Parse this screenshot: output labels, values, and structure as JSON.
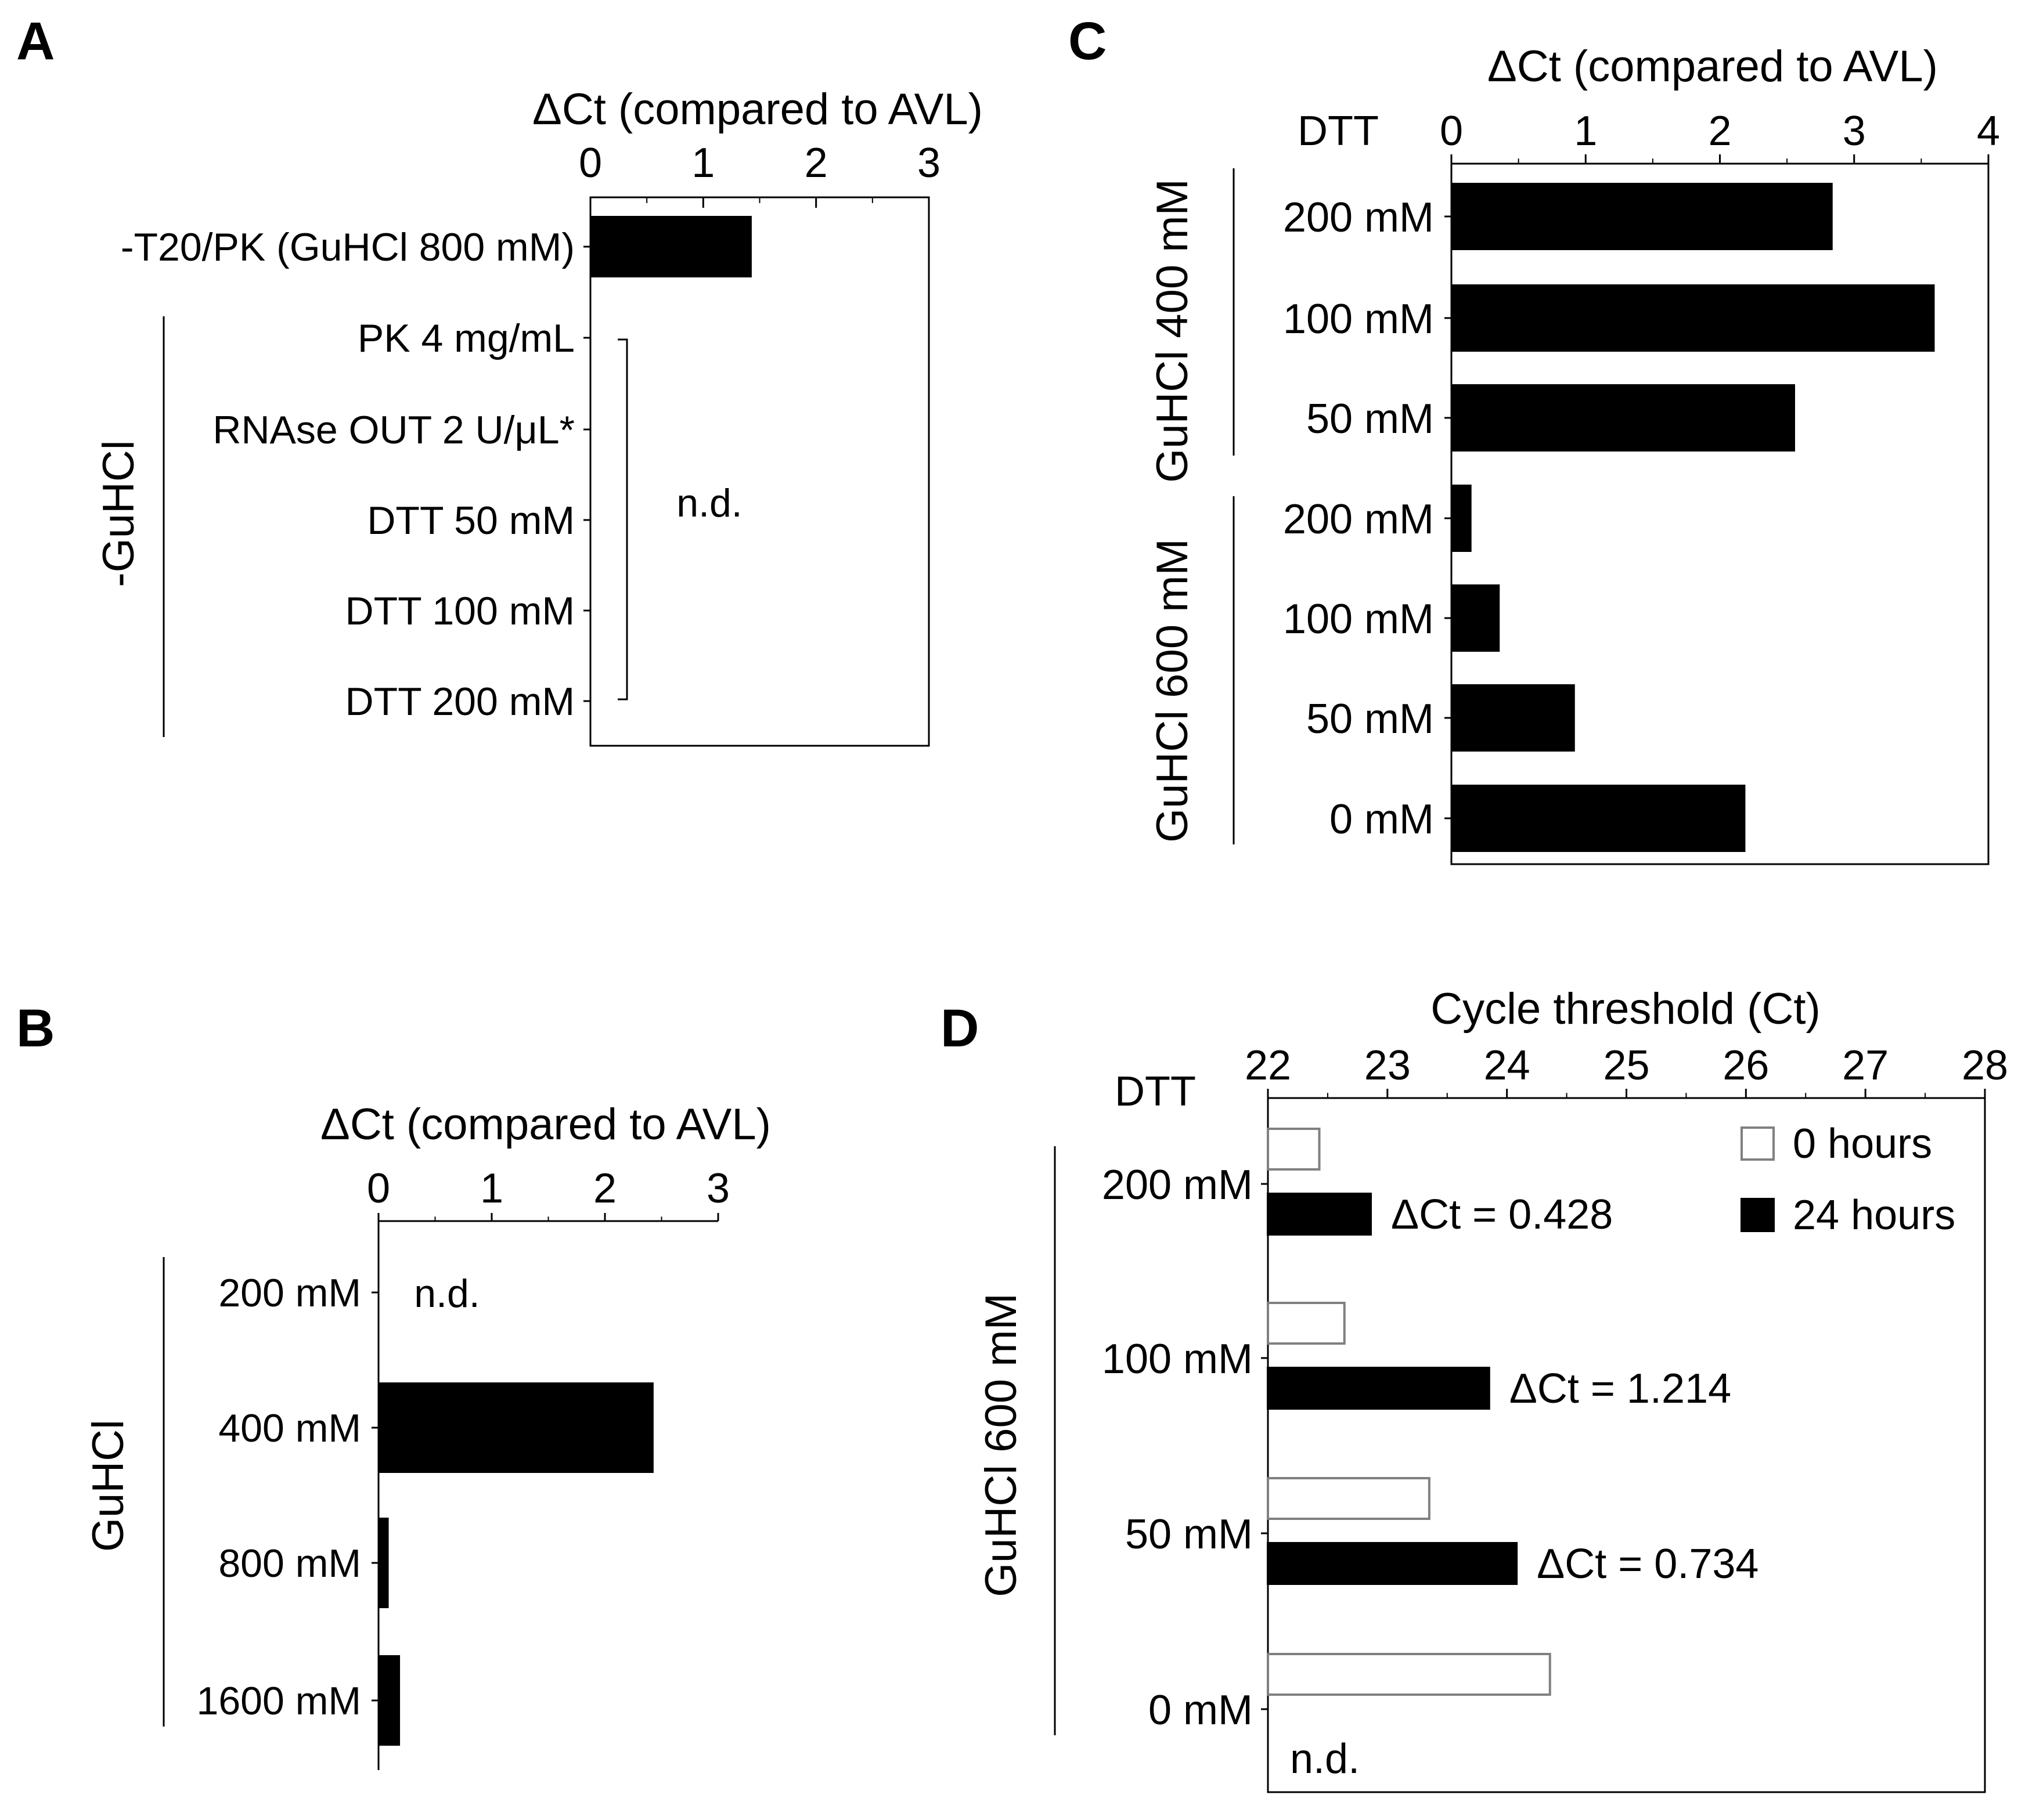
{
  "chart_data": [
    {
      "panel": "A",
      "type": "bar",
      "orientation": "horizontal",
      "title": "ΔCt (compared to AVL)",
      "xlim": [
        0,
        3
      ],
      "xticks": [
        "0",
        "1",
        "2",
        "3"
      ],
      "categories": [
        "-T20/PK (GuHCl 800 mM)",
        "PK 4 mg/mL",
        "RNAse OUT 2 U/μL*",
        "DTT 50 mM",
        "DTT 100 mM",
        "DTT 200 mM"
      ],
      "values": [
        1.43,
        null,
        null,
        null,
        null,
        null
      ],
      "group_label": "-GuHCl",
      "annotation": "n.d."
    },
    {
      "panel": "B",
      "type": "bar",
      "orientation": "horizontal",
      "title": "ΔCt (compared to AVL)",
      "xlim": [
        0,
        3
      ],
      "xticks": [
        "0",
        "1",
        "2",
        "3"
      ],
      "categories": [
        "200 mM",
        "400 mM",
        "800 mM",
        "1600 mM"
      ],
      "values": [
        null,
        2.43,
        0.09,
        0.19
      ],
      "group_label": "GuHCl",
      "annotation": "n.d."
    },
    {
      "panel": "C",
      "type": "bar",
      "orientation": "horizontal",
      "title": "ΔCt (compared to AVL)",
      "category_header": "DTT",
      "xlim": [
        0,
        4
      ],
      "xticks": [
        "0",
        "1",
        "2",
        "3",
        "4"
      ],
      "groups": [
        {
          "label": "GuHCl 400 mM",
          "categories": [
            "200 mM",
            "100 mM",
            "50 mM"
          ],
          "values": [
            2.84,
            3.6,
            2.56
          ]
        },
        {
          "label": "GuHCl 600 mM",
          "categories": [
            "200 mM",
            "100 mM",
            "50 mM",
            "0 mM"
          ],
          "values": [
            0.15,
            0.36,
            0.92,
            2.19
          ]
        }
      ]
    },
    {
      "panel": "D",
      "type": "bar",
      "orientation": "horizontal",
      "title": "Cycle threshold (Ct)",
      "category_header": "DTT",
      "xlim": [
        22,
        28
      ],
      "xticks": [
        "22",
        "23",
        "24",
        "25",
        "26",
        "27",
        "28"
      ],
      "group_label": "GuHCl 600 mM",
      "categories": [
        "200 mM",
        "100 mM",
        "50 mM",
        "0 mM"
      ],
      "series": [
        {
          "name": "0 hours",
          "values": [
            22.43,
            22.64,
            23.35,
            24.36
          ],
          "color": "#ffffff",
          "stroke": "#808080"
        },
        {
          "name": "24 hours",
          "values": [
            22.86,
            23.85,
            24.08,
            null
          ],
          "color": "#000000",
          "stroke": "#000000"
        }
      ],
      "annotations": [
        "ΔCt = 0.428",
        "ΔCt = 1.214",
        "ΔCt = 0.734",
        "n.d."
      ],
      "legend_position": "top-right"
    }
  ]
}
